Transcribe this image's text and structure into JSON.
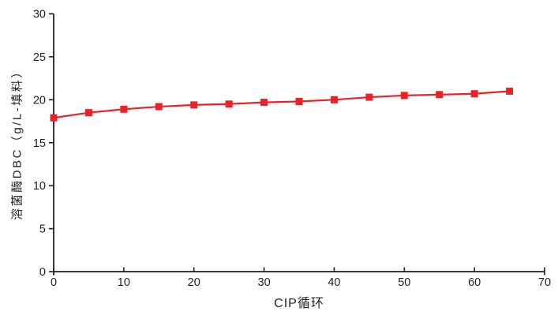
{
  "chart_data": {
    "type": "line",
    "title": "",
    "xlabel": "CIP循环",
    "ylabel": "溶菌酶DBC（g/L-填料）",
    "x": [
      0,
      5,
      10,
      15,
      20,
      25,
      30,
      35,
      40,
      45,
      50,
      55,
      60,
      65
    ],
    "series": [
      {
        "name": "溶菌酶DBC",
        "color": "#ed2024",
        "marker": "square",
        "values": [
          17.9,
          18.5,
          18.9,
          19.2,
          19.4,
          19.5,
          19.7,
          19.8,
          20.0,
          20.3,
          20.5,
          20.6,
          20.7,
          21.0
        ]
      }
    ],
    "xlim": [
      0,
      70
    ],
    "ylim": [
      0,
      30
    ],
    "x_ticks": [
      0,
      10,
      20,
      30,
      40,
      50,
      60,
      70
    ],
    "y_ticks": [
      0,
      5,
      10,
      15,
      20,
      25,
      30
    ],
    "grid": false,
    "legend_position": "none",
    "axis_color": "#231f20"
  }
}
